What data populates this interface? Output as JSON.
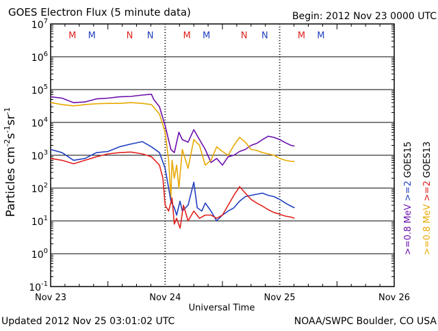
{
  "header": {
    "title": "GOES Electron Flux (5 minute data)",
    "begin": "Begin: 2012 Nov 23 0000 UTC"
  },
  "footer": {
    "updated": "Updated 2012 Nov 25 03:01:02 UTC",
    "credit": "NOAA/SWPC Boulder, CO USA"
  },
  "colors": {
    "purple": "#6a0dad",
    "orange": "#e8a800",
    "blue": "#1f3fbf",
    "red": "#e0201b",
    "axis": "#000000"
  },
  "chart_data": {
    "type": "line",
    "title": "GOES Electron Flux (5 minute data)",
    "xlabel": "Universal Time",
    "ylabel_main": "Particles cm",
    "ylabel_sup1": "-2",
    "ylabel_mid1": "s",
    "ylabel_sup2": "-1",
    "ylabel_mid2": "sr",
    "ylabel_sup3": "-1",
    "yscale": "log",
    "ylim": [
      0.1,
      10000000
    ],
    "y_ticks": [
      {
        "base": "10",
        "exp": "7",
        "value": 10000000
      },
      {
        "base": "10",
        "exp": "6",
        "value": 1000000
      },
      {
        "base": "10",
        "exp": "5",
        "value": 100000
      },
      {
        "base": "10",
        "exp": "4",
        "value": 10000
      },
      {
        "base": "10",
        "exp": "3",
        "value": 1000
      },
      {
        "base": "10",
        "exp": "2",
        "value": 100
      },
      {
        "base": "10",
        "exp": "1",
        "value": 10
      },
      {
        "base": "10",
        "exp": "0",
        "value": 1
      },
      {
        "base": "10",
        "exp": "-1",
        "value": 0.1
      }
    ],
    "xlim": [
      0,
      3
    ],
    "x_ticks": [
      {
        "label": "Nov 23",
        "value": 0
      },
      {
        "label": "Nov 24",
        "value": 1
      },
      {
        "label": "Nov 25",
        "value": 2
      },
      {
        "label": "Nov 26",
        "value": 3
      }
    ],
    "threshold": 1000,
    "markers": [
      {
        "label": "M",
        "x": 0.19,
        "color": "#e0201b"
      },
      {
        "label": "M",
        "x": 0.36,
        "color": "#1f3fbf"
      },
      {
        "label": "N",
        "x": 0.69,
        "color": "#e0201b"
      },
      {
        "label": "N",
        "x": 0.87,
        "color": "#1f3fbf"
      },
      {
        "label": "M",
        "x": 1.19,
        "color": "#e0201b"
      },
      {
        "label": "M",
        "x": 1.36,
        "color": "#1f3fbf"
      },
      {
        "label": "N",
        "x": 1.69,
        "color": "#e0201b"
      },
      {
        "label": "N",
        "x": 1.87,
        "color": "#1f3fbf"
      },
      {
        "label": "M",
        "x": 2.19,
        "color": "#e0201b"
      },
      {
        "label": "M",
        "x": 2.36,
        "color": "#1f3fbf"
      }
    ],
    "legend": {
      "inner": [
        {
          "prefix": ">=0.8",
          "unit": "MeV",
          "color": "#6a0dad"
        },
        {
          "prefix": ">=2",
          "unit": "",
          "color": "#1f3fbf"
        },
        {
          "prefix": "GOES15",
          "unit": "",
          "color": "#000000"
        }
      ],
      "outer": [
        {
          "prefix": ">=0.8",
          "unit": "MeV",
          "color": "#e8a800"
        },
        {
          "prefix": ">=2",
          "unit": "",
          "color": "#e0201b"
        },
        {
          "prefix": "GOES13",
          "unit": "",
          "color": "#000000"
        }
      ]
    },
    "series": [
      {
        "name": "GOES15 >=0.8 MeV",
        "color": "#6a0dad",
        "points": [
          [
            0,
            60000
          ],
          [
            0.1,
            55000
          ],
          [
            0.2,
            40000
          ],
          [
            0.3,
            42000
          ],
          [
            0.4,
            52000
          ],
          [
            0.5,
            55000
          ],
          [
            0.6,
            60000
          ],
          [
            0.7,
            62000
          ],
          [
            0.8,
            68000
          ],
          [
            0.88,
            72000
          ],
          [
            0.9,
            50000
          ],
          [
            0.95,
            30000
          ],
          [
            1.0,
            8000
          ],
          [
            1.05,
            1500
          ],
          [
            1.08,
            1200
          ],
          [
            1.12,
            5000
          ],
          [
            1.15,
            3000
          ],
          [
            1.2,
            2500
          ],
          [
            1.25,
            6000
          ],
          [
            1.3,
            3000
          ],
          [
            1.35,
            1500
          ],
          [
            1.4,
            600
          ],
          [
            1.45,
            800
          ],
          [
            1.5,
            500
          ],
          [
            1.55,
            900
          ],
          [
            1.6,
            1000
          ],
          [
            1.65,
            1300
          ],
          [
            1.7,
            1500
          ],
          [
            1.75,
            2000
          ],
          [
            1.8,
            2300
          ],
          [
            1.85,
            3000
          ],
          [
            1.9,
            3800
          ],
          [
            1.95,
            3500
          ],
          [
            2.0,
            3000
          ],
          [
            2.05,
            2400
          ],
          [
            2.1,
            2000
          ],
          [
            2.13,
            1900
          ]
        ]
      },
      {
        "name": "GOES13 >=0.8 MeV",
        "color": "#e8a800",
        "points": [
          [
            0,
            40000
          ],
          [
            0.1,
            35000
          ],
          [
            0.2,
            32000
          ],
          [
            0.3,
            35000
          ],
          [
            0.4,
            37000
          ],
          [
            0.5,
            38000
          ],
          [
            0.6,
            38000
          ],
          [
            0.7,
            40000
          ],
          [
            0.8,
            38000
          ],
          [
            0.88,
            35000
          ],
          [
            0.95,
            18000
          ],
          [
            1.0,
            5000
          ],
          [
            1.03,
            700
          ],
          [
            1.05,
            50
          ],
          [
            1.06,
            700
          ],
          [
            1.08,
            200
          ],
          [
            1.1,
            500
          ],
          [
            1.12,
            100
          ],
          [
            1.15,
            1500
          ],
          [
            1.2,
            400
          ],
          [
            1.25,
            3000
          ],
          [
            1.3,
            2000
          ],
          [
            1.35,
            500
          ],
          [
            1.4,
            700
          ],
          [
            1.45,
            1800
          ],
          [
            1.5,
            1300
          ],
          [
            1.55,
            1000
          ],
          [
            1.6,
            2000
          ],
          [
            1.65,
            3500
          ],
          [
            1.7,
            2500
          ],
          [
            1.75,
            1500
          ],
          [
            1.8,
            1400
          ],
          [
            1.85,
            1200
          ],
          [
            1.9,
            1100
          ],
          [
            1.95,
            1000
          ],
          [
            2.0,
            800
          ],
          [
            2.05,
            700
          ],
          [
            2.1,
            650
          ],
          [
            2.13,
            650
          ]
        ]
      },
      {
        "name": "GOES15 >=2 MeV",
        "color": "#1f3fbf",
        "points": [
          [
            0,
            1500
          ],
          [
            0.1,
            1200
          ],
          [
            0.2,
            700
          ],
          [
            0.3,
            800
          ],
          [
            0.4,
            1200
          ],
          [
            0.5,
            1300
          ],
          [
            0.6,
            1800
          ],
          [
            0.7,
            2200
          ],
          [
            0.8,
            2600
          ],
          [
            0.88,
            1800
          ],
          [
            0.95,
            1200
          ],
          [
            1.0,
            400
          ],
          [
            1.03,
            100
          ],
          [
            1.05,
            40
          ],
          [
            1.08,
            25
          ],
          [
            1.1,
            15
          ],
          [
            1.13,
            40
          ],
          [
            1.15,
            20
          ],
          [
            1.2,
            30
          ],
          [
            1.25,
            150
          ],
          [
            1.28,
            25
          ],
          [
            1.32,
            20
          ],
          [
            1.35,
            35
          ],
          [
            1.4,
            20
          ],
          [
            1.45,
            10
          ],
          [
            1.5,
            15
          ],
          [
            1.55,
            20
          ],
          [
            1.6,
            25
          ],
          [
            1.65,
            40
          ],
          [
            1.7,
            55
          ],
          [
            1.75,
            60
          ],
          [
            1.8,
            65
          ],
          [
            1.85,
            70
          ],
          [
            1.9,
            60
          ],
          [
            1.95,
            55
          ],
          [
            2.0,
            45
          ],
          [
            2.05,
            35
          ],
          [
            2.1,
            28
          ],
          [
            2.13,
            25
          ]
        ]
      },
      {
        "name": "GOES13 >=2 MeV",
        "color": "#e0201b",
        "points": [
          [
            0,
            800
          ],
          [
            0.1,
            700
          ],
          [
            0.2,
            550
          ],
          [
            0.3,
            700
          ],
          [
            0.4,
            900
          ],
          [
            0.5,
            1100
          ],
          [
            0.6,
            1200
          ],
          [
            0.7,
            1250
          ],
          [
            0.8,
            1100
          ],
          [
            0.88,
            900
          ],
          [
            0.95,
            500
          ],
          [
            0.98,
            200
          ],
          [
            1.0,
            30
          ],
          [
            1.03,
            20
          ],
          [
            1.06,
            50
          ],
          [
            1.08,
            8
          ],
          [
            1.1,
            12
          ],
          [
            1.13,
            6
          ],
          [
            1.16,
            30
          ],
          [
            1.2,
            10
          ],
          [
            1.25,
            20
          ],
          [
            1.3,
            12
          ],
          [
            1.35,
            15
          ],
          [
            1.4,
            15
          ],
          [
            1.45,
            12
          ],
          [
            1.5,
            15
          ],
          [
            1.55,
            30
          ],
          [
            1.6,
            60
          ],
          [
            1.65,
            110
          ],
          [
            1.7,
            70
          ],
          [
            1.75,
            45
          ],
          [
            1.8,
            35
          ],
          [
            1.85,
            28
          ],
          [
            1.9,
            22
          ],
          [
            1.95,
            18
          ],
          [
            2.0,
            16
          ],
          [
            2.05,
            14
          ],
          [
            2.1,
            13
          ],
          [
            2.13,
            12
          ]
        ]
      }
    ]
  }
}
